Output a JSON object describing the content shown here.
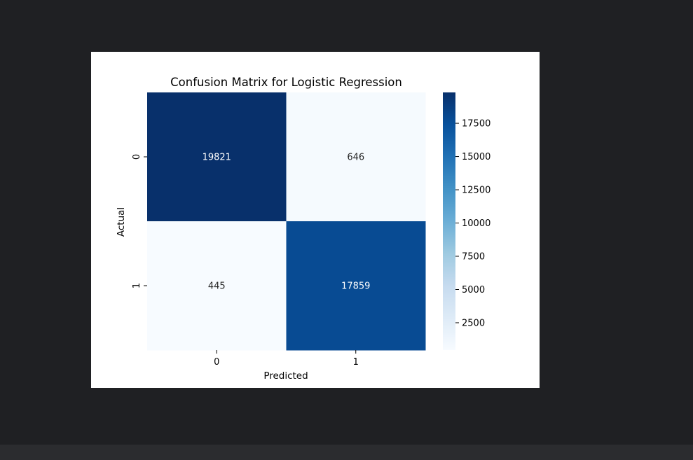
{
  "chart_data": {
    "type": "heatmap",
    "title": "Confusion Matrix for Logistic Regression",
    "xlabel": "Predicted",
    "ylabel": "Actual",
    "x_categories": [
      "0",
      "1"
    ],
    "y_categories": [
      "0",
      "1"
    ],
    "values": [
      [
        19821,
        646
      ],
      [
        445,
        17859
      ]
    ],
    "colormap": "Blues",
    "colorbar": {
      "ticks": [
        2500,
        5000,
        7500,
        10000,
        12500,
        15000,
        17500
      ],
      "tick_labels": [
        "2500",
        "5000",
        "7500",
        "10000",
        "12500",
        "15000",
        "17500"
      ],
      "range": [
        445,
        19821
      ]
    }
  },
  "colors": {
    "page_background": "#1f2023",
    "bottom_bar": "#2b2c2f",
    "figure_background": "#ffffff",
    "cmap_low": "#f7fbff",
    "cmap_high": "#08306b"
  }
}
